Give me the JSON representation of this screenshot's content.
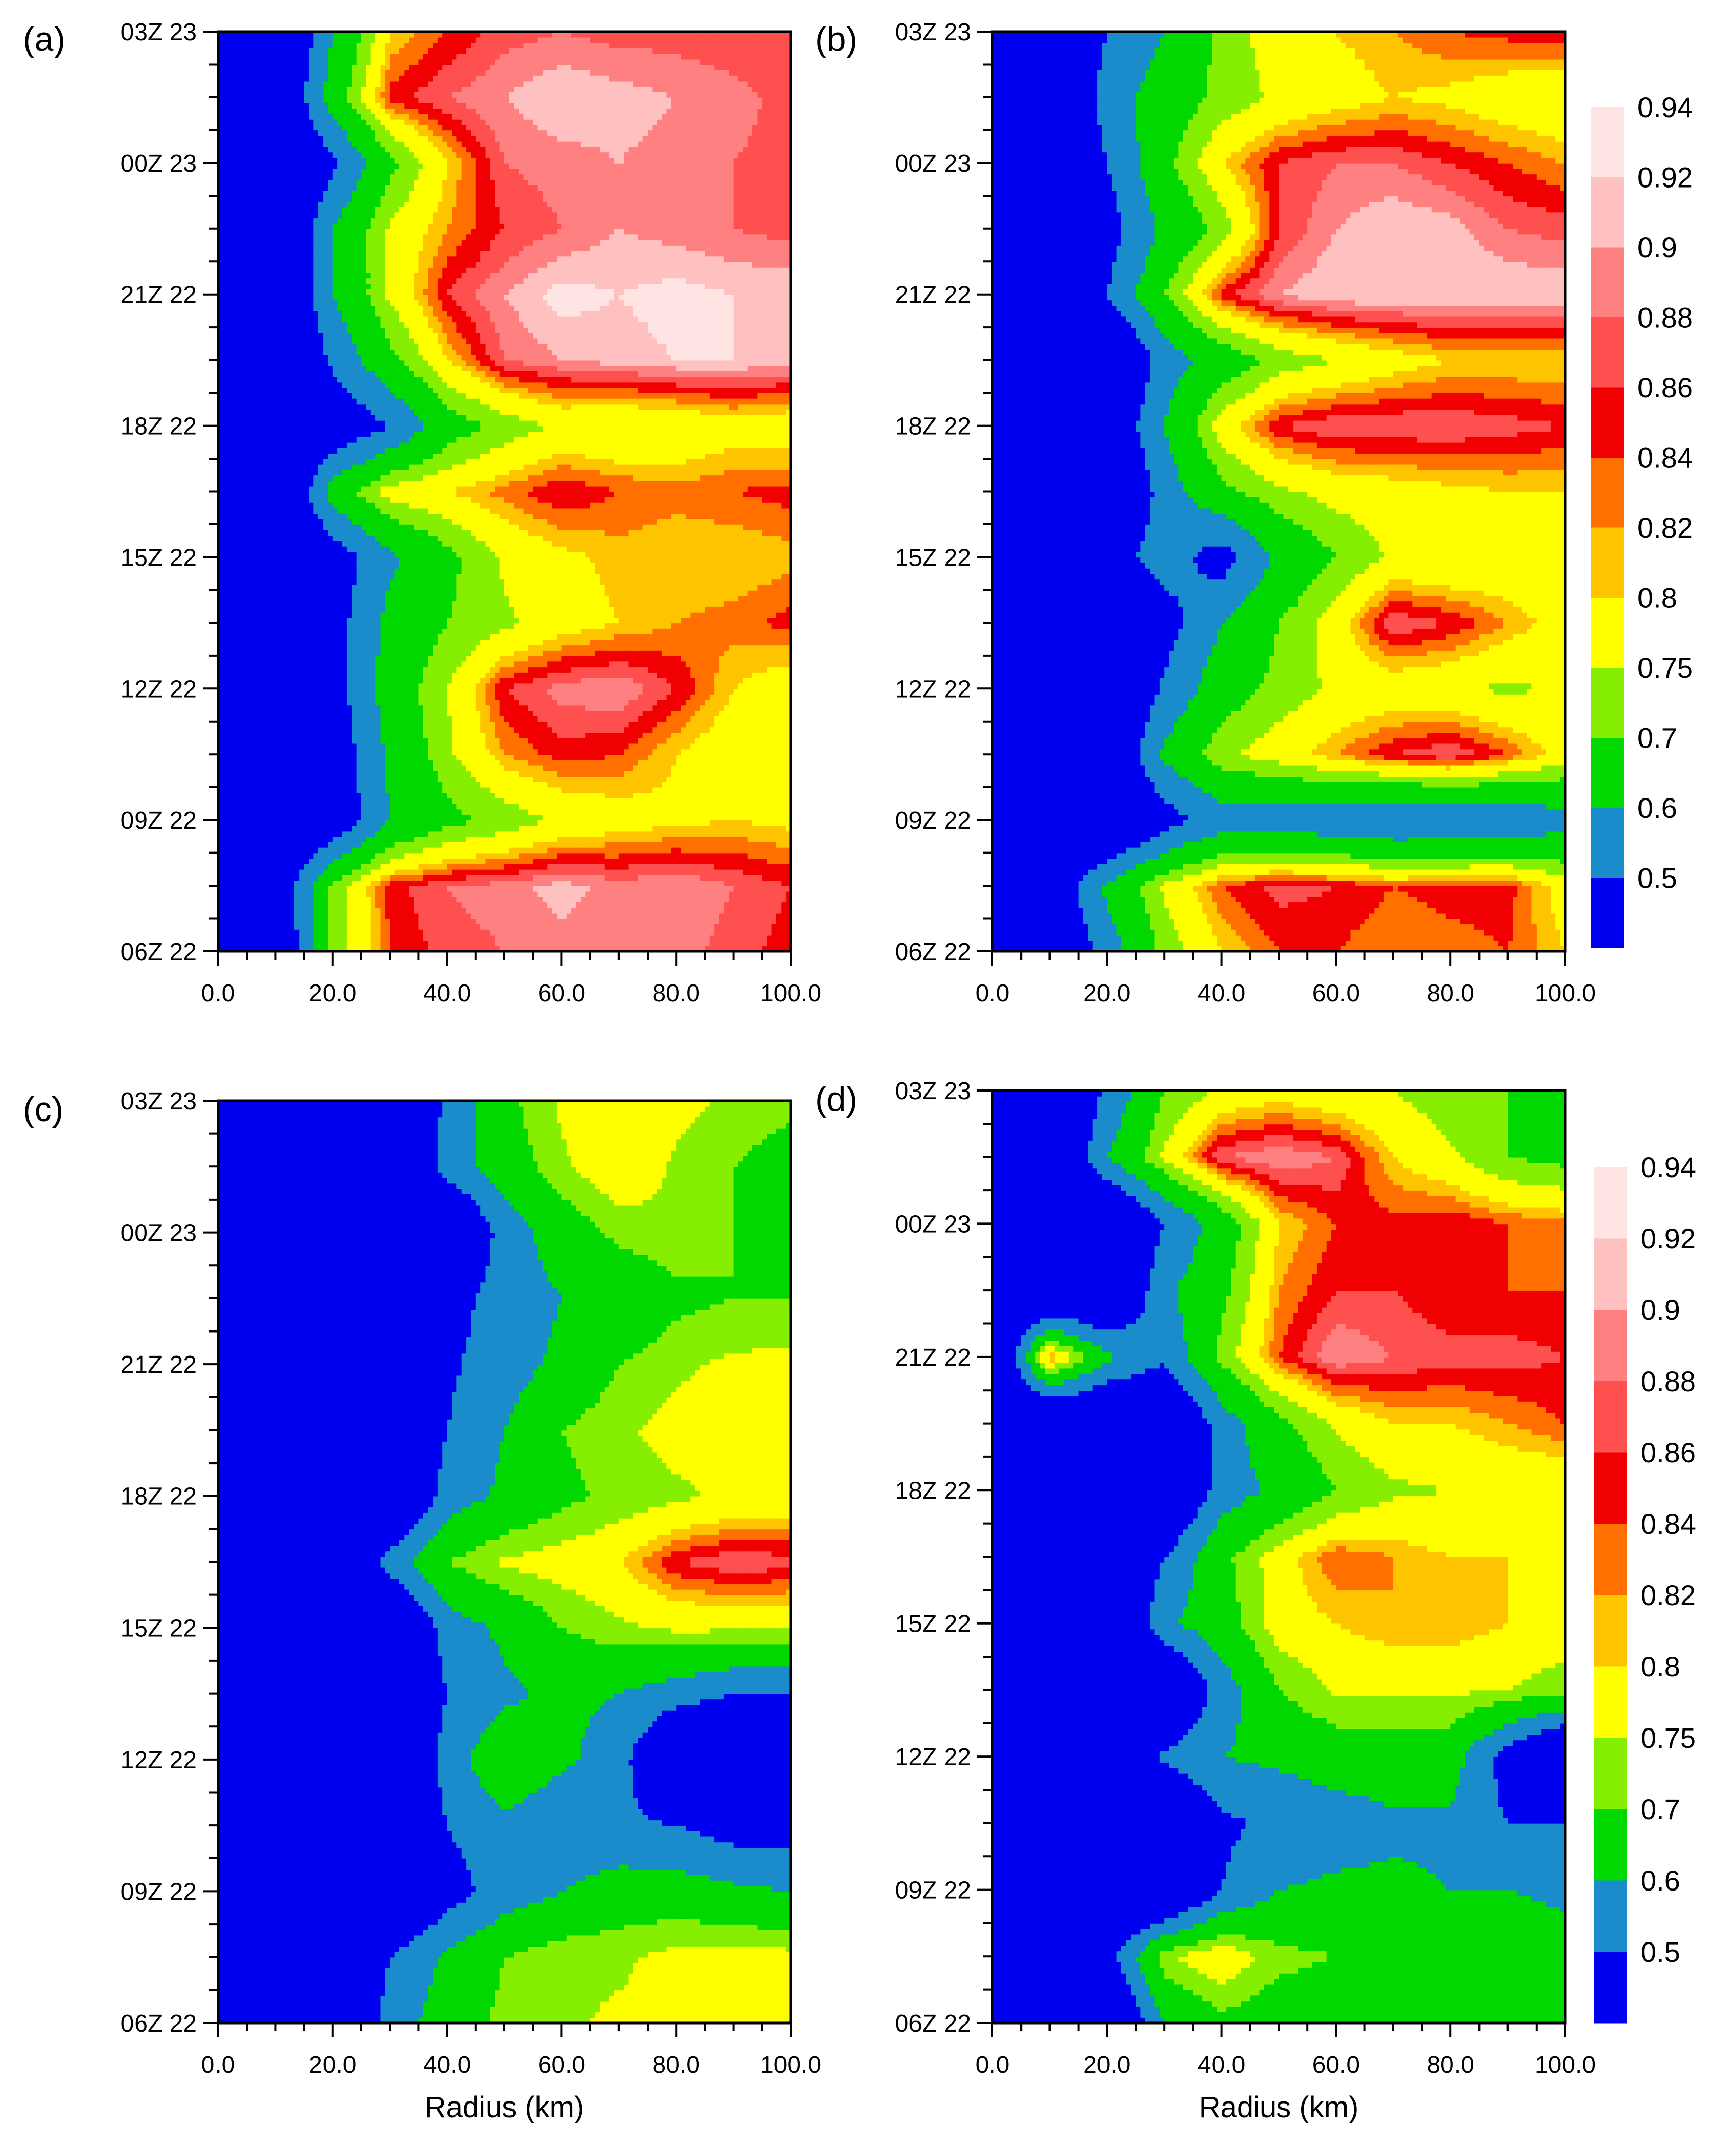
{
  "figure": {
    "y_tick_labels": [
      "06Z 22",
      "09Z 22",
      "12Z 22",
      "15Z 22",
      "18Z 22",
      "21Z 22",
      "00Z 23",
      "03Z 23"
    ],
    "x_tick_labels": [
      "0.0",
      "20.0",
      "40.0",
      "60.0",
      "80.0",
      "100.0"
    ],
    "xlabel": "Radius (km)",
    "colorbar": {
      "levels": [
        "0.5",
        "0.6",
        "0.7",
        "0.75",
        "0.8",
        "0.82",
        "0.84",
        "0.86",
        "0.88",
        "0.9",
        "0.92",
        "0.94"
      ],
      "colors": [
        "#0000f0",
        "#1a8ccc",
        "#00d800",
        "#86ee00",
        "#ffff00",
        "#ffc400",
        "#ff7000",
        "#f00000",
        "#ff5050",
        "#ff8080",
        "#ffc0c0",
        "#ffe4e4"
      ]
    }
  },
  "chart_data": [
    {
      "type": "heatmap",
      "panel_label": "(a)",
      "xlabel": "",
      "xlim": [
        0,
        100
      ],
      "ylim": [
        "06Z 22",
        "03Z 23"
      ],
      "x": [
        0,
        10,
        20,
        30,
        40,
        50,
        60,
        70,
        80,
        90,
        100
      ],
      "y": [
        "06Z 22",
        "07:30Z 22",
        "09Z 22",
        "10:30Z 22",
        "12Z 22",
        "13:30Z 22",
        "15Z 22",
        "16:30Z 22",
        "18Z 22",
        "19:30Z 22",
        "21Z 22",
        "22:30Z 22",
        "00Z 23",
        "01:30Z 23",
        "03Z 23"
      ],
      "z": [
        [
          0.3,
          0.35,
          0.72,
          0.84,
          0.87,
          0.88,
          0.89,
          0.88,
          0.89,
          0.87,
          0.85
        ],
        [
          0.3,
          0.4,
          0.72,
          0.85,
          0.88,
          0.89,
          0.91,
          0.89,
          0.9,
          0.88,
          0.86
        ],
        [
          0.3,
          0.3,
          0.4,
          0.6,
          0.68,
          0.72,
          0.76,
          0.78,
          0.79,
          0.8,
          0.79
        ],
        [
          0.3,
          0.3,
          0.42,
          0.62,
          0.74,
          0.82,
          0.85,
          0.84,
          0.8,
          0.77,
          0.76
        ],
        [
          0.3,
          0.3,
          0.45,
          0.65,
          0.75,
          0.86,
          0.89,
          0.9,
          0.86,
          0.8,
          0.77
        ],
        [
          0.3,
          0.3,
          0.45,
          0.63,
          0.7,
          0.74,
          0.78,
          0.8,
          0.82,
          0.83,
          0.85
        ],
        [
          0.3,
          0.3,
          0.43,
          0.58,
          0.68,
          0.76,
          0.79,
          0.81,
          0.8,
          0.8,
          0.81
        ],
        [
          0.3,
          0.3,
          0.65,
          0.78,
          0.8,
          0.83,
          0.86,
          0.84,
          0.83,
          0.84,
          0.85
        ],
        [
          0.3,
          0.3,
          0.4,
          0.5,
          0.66,
          0.72,
          0.76,
          0.75,
          0.76,
          0.78,
          0.77
        ],
        [
          0.3,
          0.3,
          0.52,
          0.68,
          0.8,
          0.88,
          0.9,
          0.91,
          0.92,
          0.92,
          0.91
        ],
        [
          0.3,
          0.3,
          0.6,
          0.76,
          0.86,
          0.9,
          0.93,
          0.92,
          0.93,
          0.92,
          0.92
        ],
        [
          0.3,
          0.3,
          0.6,
          0.76,
          0.82,
          0.86,
          0.88,
          0.9,
          0.89,
          0.88,
          0.87
        ],
        [
          0.3,
          0.3,
          0.48,
          0.68,
          0.8,
          0.88,
          0.89,
          0.9,
          0.89,
          0.88,
          0.87
        ],
        [
          0.3,
          0.35,
          0.65,
          0.85,
          0.88,
          0.9,
          0.92,
          0.91,
          0.9,
          0.89,
          0.87
        ],
        [
          0.3,
          0.3,
          0.6,
          0.8,
          0.84,
          0.87,
          0.88,
          0.87,
          0.87,
          0.86,
          0.86
        ]
      ]
    },
    {
      "type": "heatmap",
      "panel_label": "(b)",
      "xlabel": "",
      "xlim": [
        0,
        100
      ],
      "ylim": [
        "06Z 22",
        "03Z 23"
      ],
      "x": [
        0,
        10,
        20,
        30,
        40,
        50,
        60,
        70,
        80,
        90,
        100
      ],
      "y": [
        "06Z 22",
        "07:30Z 22",
        "09Z 22",
        "10:30Z 22",
        "12Z 22",
        "13:30Z 22",
        "15Z 22",
        "16:30Z 22",
        "18Z 22",
        "19:30Z 22",
        "21Z 22",
        "22:30Z 22",
        "00Z 23",
        "01:30Z 23",
        "03Z 23"
      ],
      "z": [
        [
          0.3,
          0.35,
          0.55,
          0.72,
          0.8,
          0.84,
          0.84,
          0.82,
          0.83,
          0.84,
          0.8
        ],
        [
          0.3,
          0.4,
          0.62,
          0.76,
          0.84,
          0.87,
          0.86,
          0.84,
          0.85,
          0.85,
          0.78
        ],
        [
          0.3,
          0.3,
          0.3,
          0.45,
          0.55,
          0.55,
          0.52,
          0.5,
          0.5,
          0.52,
          0.56
        ],
        [
          0.3,
          0.3,
          0.35,
          0.62,
          0.74,
          0.78,
          0.82,
          0.86,
          0.88,
          0.84,
          0.78
        ],
        [
          0.3,
          0.3,
          0.3,
          0.52,
          0.66,
          0.72,
          0.76,
          0.77,
          0.76,
          0.74,
          0.76
        ],
        [
          0.3,
          0.3,
          0.3,
          0.45,
          0.6,
          0.7,
          0.78,
          0.88,
          0.86,
          0.82,
          0.78
        ],
        [
          0.3,
          0.5,
          0.45,
          0.55,
          0.45,
          0.62,
          0.7,
          0.76,
          0.75,
          0.76,
          0.77
        ],
        [
          0.3,
          0.3,
          0.3,
          0.55,
          0.68,
          0.74,
          0.77,
          0.78,
          0.79,
          0.8,
          0.8
        ],
        [
          0.3,
          0.3,
          0.4,
          0.6,
          0.78,
          0.86,
          0.88,
          0.88,
          0.88,
          0.87,
          0.86
        ],
        [
          0.3,
          0.3,
          0.3,
          0.55,
          0.65,
          0.72,
          0.75,
          0.78,
          0.8,
          0.8,
          0.8
        ],
        [
          0.3,
          0.3,
          0.5,
          0.7,
          0.85,
          0.9,
          0.92,
          0.92,
          0.92,
          0.92,
          0.92
        ],
        [
          0.3,
          0.3,
          0.45,
          0.62,
          0.72,
          0.86,
          0.9,
          0.92,
          0.91,
          0.88,
          0.87
        ],
        [
          0.3,
          0.3,
          0.5,
          0.68,
          0.8,
          0.86,
          0.88,
          0.88,
          0.86,
          0.84,
          0.82
        ],
        [
          0.3,
          0.3,
          0.55,
          0.65,
          0.72,
          0.76,
          0.78,
          0.8,
          0.79,
          0.77,
          0.76
        ],
        [
          0.3,
          0.3,
          0.5,
          0.6,
          0.72,
          0.78,
          0.8,
          0.82,
          0.84,
          0.85,
          0.86
        ]
      ]
    },
    {
      "type": "heatmap",
      "panel_label": "(c)",
      "xlabel": "Radius (km)",
      "xlim": [
        0,
        100
      ],
      "ylim": [
        "06Z 22",
        "03Z 23"
      ],
      "x": [
        0,
        10,
        20,
        30,
        40,
        50,
        60,
        70,
        80,
        90,
        100
      ],
      "y": [
        "06Z 22",
        "07:30Z 22",
        "09Z 22",
        "10:30Z 22",
        "12Z 22",
        "13:30Z 22",
        "15Z 22",
        "16:30Z 22",
        "18Z 22",
        "19:30Z 22",
        "21Z 22",
        "22:30Z 22",
        "00Z 23",
        "01:30Z 23",
        "03Z 23"
      ],
      "z": [
        [
          0.3,
          0.3,
          0.3,
          0.55,
          0.65,
          0.72,
          0.74,
          0.76,
          0.76,
          0.76,
          0.76
        ],
        [
          0.3,
          0.3,
          0.3,
          0.5,
          0.62,
          0.7,
          0.74,
          0.74,
          0.77,
          0.78,
          0.77
        ],
        [
          0.3,
          0.3,
          0.3,
          0.3,
          0.45,
          0.55,
          0.6,
          0.65,
          0.65,
          0.62,
          0.6
        ],
        [
          0.3,
          0.3,
          0.3,
          0.3,
          0.5,
          0.58,
          0.52,
          0.52,
          0.5,
          0.45,
          0.45
        ],
        [
          0.3,
          0.3,
          0.3,
          0.3,
          0.55,
          0.68,
          0.62,
          0.55,
          0.3,
          0.3,
          0.3
        ],
        [
          0.3,
          0.3,
          0.3,
          0.3,
          0.5,
          0.58,
          0.62,
          0.6,
          0.55,
          0.5,
          0.5
        ],
        [
          0.3,
          0.3,
          0.3,
          0.3,
          0.55,
          0.62,
          0.7,
          0.74,
          0.76,
          0.76,
          0.76
        ],
        [
          0.3,
          0.3,
          0.3,
          0.55,
          0.7,
          0.76,
          0.78,
          0.8,
          0.86,
          0.88,
          0.87
        ],
        [
          0.3,
          0.3,
          0.3,
          0.3,
          0.55,
          0.62,
          0.68,
          0.72,
          0.74,
          0.76,
          0.77
        ],
        [
          0.3,
          0.3,
          0.3,
          0.3,
          0.5,
          0.6,
          0.7,
          0.74,
          0.77,
          0.78,
          0.78
        ],
        [
          0.3,
          0.3,
          0.3,
          0.3,
          0.48,
          0.56,
          0.62,
          0.7,
          0.74,
          0.76,
          0.77
        ],
        [
          0.3,
          0.3,
          0.3,
          0.3,
          0.45,
          0.55,
          0.6,
          0.62,
          0.68,
          0.7,
          0.7
        ],
        [
          0.3,
          0.3,
          0.3,
          0.3,
          0.3,
          0.55,
          0.65,
          0.72,
          0.74,
          0.7,
          0.65
        ],
        [
          0.3,
          0.3,
          0.3,
          0.3,
          0.55,
          0.65,
          0.74,
          0.8,
          0.74,
          0.7,
          0.66
        ],
        [
          0.3,
          0.3,
          0.3,
          0.3,
          0.52,
          0.68,
          0.76,
          0.78,
          0.77,
          0.74,
          0.72
        ]
      ]
    },
    {
      "type": "heatmap",
      "panel_label": "(d)",
      "xlabel": "Radius (km)",
      "xlim": [
        0,
        100
      ],
      "ylim": [
        "06Z 22",
        "03Z 23"
      ],
      "x": [
        0,
        10,
        20,
        30,
        40,
        50,
        60,
        70,
        80,
        90,
        100
      ],
      "y": [
        "06Z 22",
        "07:30Z 22",
        "09Z 22",
        "10:30Z 22",
        "12Z 22",
        "13:30Z 22",
        "15Z 22",
        "16:30Z 22",
        "18Z 22",
        "19:30Z 22",
        "21Z 22",
        "22:30Z 22",
        "00Z 23",
        "01:30Z 23",
        "03Z 23"
      ],
      "z": [
        [
          0.3,
          0.3,
          0.3,
          0.6,
          0.68,
          0.65,
          0.64,
          0.64,
          0.64,
          0.63,
          0.62
        ],
        [
          0.3,
          0.3,
          0.45,
          0.74,
          0.8,
          0.72,
          0.7,
          0.68,
          0.66,
          0.66,
          0.64
        ],
        [
          0.3,
          0.3,
          0.3,
          0.3,
          0.5,
          0.6,
          0.62,
          0.62,
          0.6,
          0.6,
          0.58
        ],
        [
          0.3,
          0.3,
          0.3,
          0.3,
          0.48,
          0.52,
          0.55,
          0.58,
          0.58,
          0.5,
          0.5
        ],
        [
          0.3,
          0.3,
          0.3,
          0.52,
          0.6,
          0.62,
          0.65,
          0.66,
          0.65,
          0.45,
          0.3
        ],
        [
          0.3,
          0.3,
          0.3,
          0.3,
          0.55,
          0.7,
          0.76,
          0.76,
          0.76,
          0.75,
          0.72
        ],
        [
          0.3,
          0.3,
          0.3,
          0.58,
          0.66,
          0.78,
          0.8,
          0.82,
          0.82,
          0.8,
          0.79
        ],
        [
          0.3,
          0.3,
          0.3,
          0.5,
          0.68,
          0.78,
          0.84,
          0.82,
          0.8,
          0.8,
          0.78
        ],
        [
          0.3,
          0.3,
          0.3,
          0.3,
          0.55,
          0.62,
          0.7,
          0.74,
          0.75,
          0.76,
          0.76
        ],
        [
          0.3,
          0.3,
          0.3,
          0.3,
          0.55,
          0.68,
          0.76,
          0.8,
          0.8,
          0.82,
          0.84
        ],
        [
          0.3,
          0.84,
          0.62,
          0.52,
          0.72,
          0.84,
          0.9,
          0.88,
          0.87,
          0.87,
          0.86
        ],
        [
          0.3,
          0.3,
          0.3,
          0.58,
          0.68,
          0.82,
          0.86,
          0.86,
          0.84,
          0.84,
          0.84
        ],
        [
          0.3,
          0.3,
          0.3,
          0.5,
          0.65,
          0.8,
          0.84,
          0.85,
          0.86,
          0.84,
          0.83
        ],
        [
          0.3,
          0.3,
          0.6,
          0.76,
          0.88,
          0.9,
          0.88,
          0.8,
          0.76,
          0.7,
          0.68
        ],
        [
          0.3,
          0.3,
          0.52,
          0.7,
          0.76,
          0.78,
          0.76,
          0.75,
          0.72,
          0.7,
          0.7
        ]
      ]
    }
  ]
}
